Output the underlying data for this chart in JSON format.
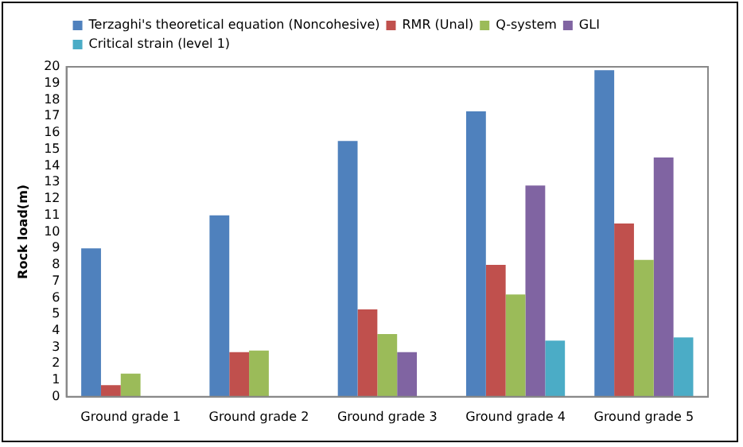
{
  "chart_data": {
    "type": "bar",
    "ylabel": "Rock load(m)",
    "categories": [
      "Ground grade 1",
      "Ground grade 2",
      "Ground grade 3",
      "Ground grade 4",
      "Ground grade 5"
    ],
    "series": [
      {
        "name": "Terzaghi's theoretical equation (Noncohesive)",
        "color": "#4f81bd",
        "values": [
          9,
          11,
          15.5,
          17.3,
          19.8
        ]
      },
      {
        "name": "RMR (Unal)",
        "color": "#c0504d",
        "values": [
          0.7,
          2.7,
          5.3,
          8.0,
          10.5
        ]
      },
      {
        "name": "Q-system",
        "color": "#9bbb59",
        "values": [
          1.4,
          2.8,
          3.8,
          6.2,
          8.3
        ]
      },
      {
        "name": "GLI",
        "color": "#8064a2",
        "values": [
          null,
          null,
          2.7,
          12.8,
          14.5
        ]
      },
      {
        "name": "Critical strain (level 1)",
        "color": "#4bacc6",
        "values": [
          null,
          null,
          null,
          3.4,
          3.6
        ]
      }
    ],
    "ylim": [
      0,
      20
    ],
    "yticks": [
      0,
      1,
      2,
      3,
      4,
      5,
      6,
      7,
      8,
      9,
      10,
      11,
      12,
      13,
      14,
      15,
      16,
      17,
      18,
      19,
      20
    ],
    "grid": false,
    "legend": "top left"
  }
}
